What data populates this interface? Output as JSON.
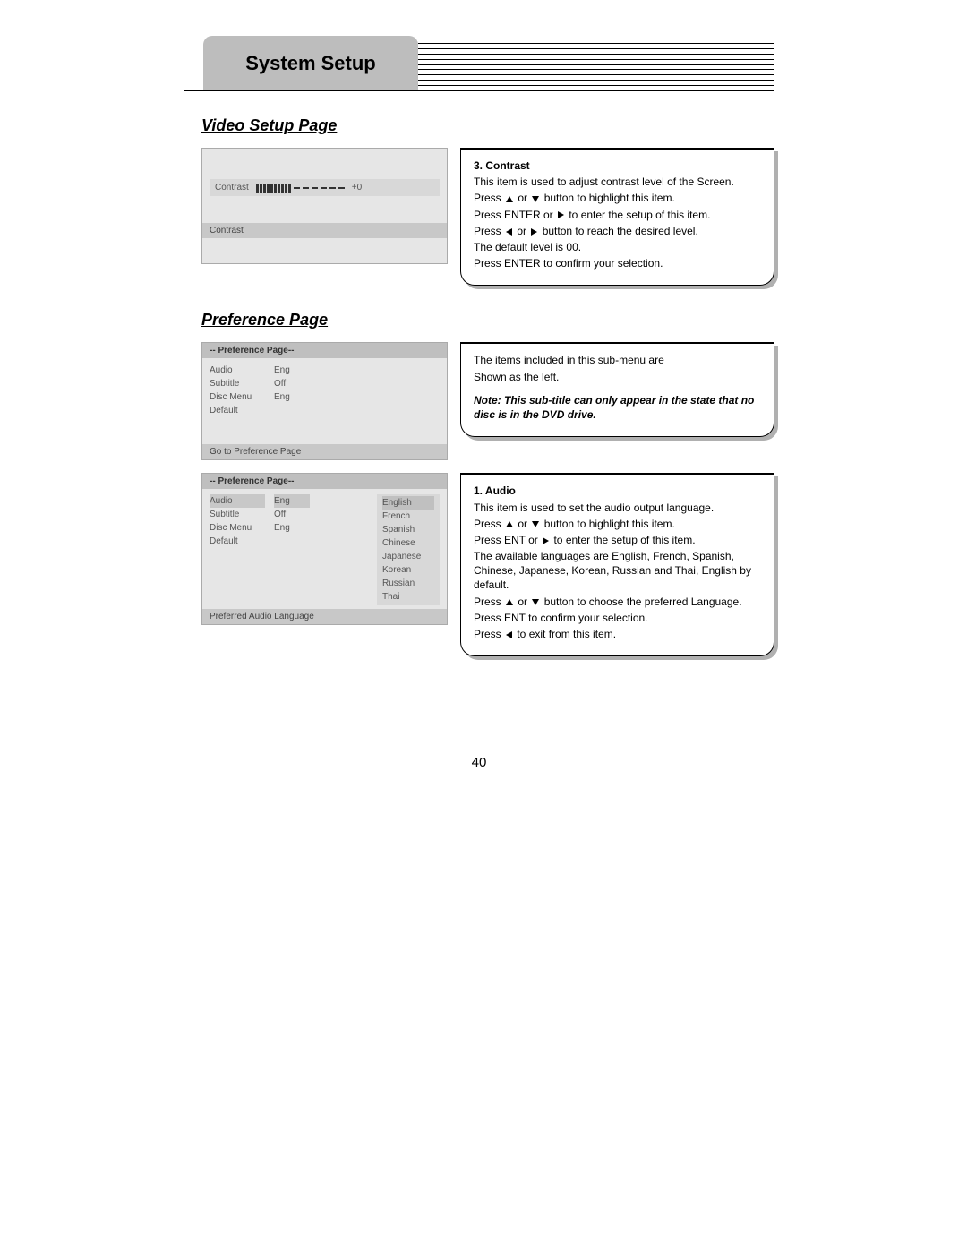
{
  "header": {
    "title": "System Setup",
    "ruled_line_count": 9
  },
  "video": {
    "heading": "Video Setup Page",
    "ui": {
      "row_label": "Contrast",
      "row_value": "+0",
      "footer": "Contrast",
      "bar_filled": 10,
      "bar_dashes": 6
    },
    "panel": {
      "title": "3. Contrast",
      "l1": "This item is used to adjust contrast level of the Screen.",
      "l2a": "Press ",
      "l2b": " or ",
      "l2c": " button to highlight this item.",
      "l3a": "Press ENTER or ",
      "l3b": " to enter the setup of this item.",
      "l4a": "Press ",
      "l4b": " or ",
      "l4c": " button to reach the desired level.",
      "l5": "The default level is 00.",
      "l6": "Press ENTER to confirm your selection."
    }
  },
  "pref": {
    "heading": "Preference Page",
    "ui1": {
      "titlebar": "-- Preference Page--",
      "rows": [
        {
          "k": "Audio",
          "v": "Eng"
        },
        {
          "k": "Subtitle",
          "v": "Off"
        },
        {
          "k": "Disc Menu",
          "v": "Eng"
        },
        {
          "k": "Default",
          "v": ""
        }
      ],
      "footer": "Go to Preference Page"
    },
    "panel1": {
      "l1": "The items included in this sub-menu are",
      "l2": "Shown as the left.",
      "note": "Note: This sub-title can only appear in the state that no disc is in the DVD drive."
    },
    "ui2": {
      "titlebar": "-- Preference Page--",
      "rows": [
        {
          "k": "Audio",
          "v": "Eng",
          "hl": true
        },
        {
          "k": "Subtitle",
          "v": "Off"
        },
        {
          "k": "Disc Menu",
          "v": "Eng"
        },
        {
          "k": "Default",
          "v": ""
        }
      ],
      "languages": [
        "English",
        "French",
        "Spanish",
        "Chinese",
        "Japanese",
        "Korean",
        "Russian",
        "Thai"
      ],
      "lang_hl_index": 0,
      "footer": "Preferred Audio Language"
    },
    "panel2": {
      "title": "1. Audio",
      "l1": "This item is used to set the audio output language.",
      "l2a": "Press ",
      "l2b": " or ",
      "l2c": " button to highlight this item.",
      "l3a": "Press ENT or ",
      "l3b": " to enter the setup of this item.",
      "l4": "The available languages are English, French, Spanish, Chinese, Japanese, Korean, Russian and Thai, English by default.",
      "l5a": "Press ",
      "l5b": " or ",
      "l5c": " button to choose the preferred Language.",
      "l6": "Press ENT to confirm your selection.",
      "l7a": "Press ",
      "l7b": " to exit from this item."
    }
  },
  "page_number": "40"
}
